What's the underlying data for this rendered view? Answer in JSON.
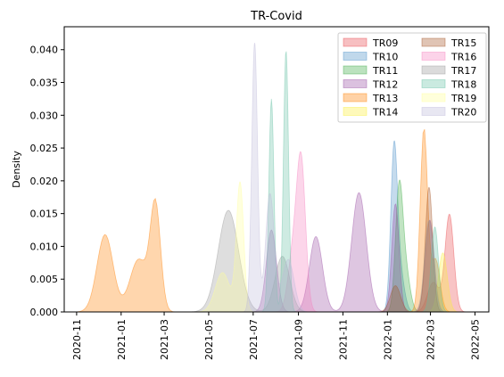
{
  "chart_data": {
    "type": "area",
    "title": "TR-Covid",
    "xlabel": "",
    "ylabel": "Density",
    "ylim": [
      0,
      0.0435
    ],
    "xlim": [
      "2020-10-15",
      "2022-05-20"
    ],
    "x_ticks": [
      "2020-11",
      "2021-01",
      "2021-03",
      "2021-05",
      "2021-07",
      "2021-09",
      "2021-11",
      "2022-01",
      "2022-03",
      "2022-05"
    ],
    "y_ticks": [
      "0.000",
      "0.005",
      "0.010",
      "0.015",
      "0.020",
      "0.025",
      "0.030",
      "0.035",
      "0.040"
    ],
    "grid": false,
    "legend_position": "top-right",
    "series": [
      {
        "name": "TR09",
        "color": "#e8474c",
        "peaks": [
          {
            "x": "2022-03-27",
            "y": 0.0148,
            "sd": 6
          },
          {
            "x": "2022-03-05",
            "y": 0.0045,
            "sd": 8
          }
        ]
      },
      {
        "name": "TR10",
        "color": "#4a8fc7",
        "peaks": [
          {
            "x": "2022-01-10",
            "y": 0.0235,
            "sd": 4.5
          },
          {
            "x": "2022-01-18",
            "y": 0.006,
            "sd": 6
          }
        ]
      },
      {
        "name": "TR11",
        "color": "#3dab45",
        "peaks": [
          {
            "x": "2022-01-17",
            "y": 0.018,
            "sd": 5
          },
          {
            "x": "2022-01-26",
            "y": 0.006,
            "sd": 6
          }
        ]
      },
      {
        "name": "TR12",
        "color": "#984ea3",
        "peaks": [
          {
            "x": "2021-07-26",
            "y": 0.0125,
            "sd": 7
          },
          {
            "x": "2021-09-25",
            "y": 0.0115,
            "sd": 9
          },
          {
            "x": "2021-11-23",
            "y": 0.0182,
            "sd": 10
          },
          {
            "x": "2022-01-12",
            "y": 0.0165,
            "sd": 5
          },
          {
            "x": "2022-02-28",
            "y": 0.014,
            "sd": 6
          }
        ]
      },
      {
        "name": "TR13",
        "color": "#ff7f00",
        "peaks": [
          {
            "x": "2020-12-10",
            "y": 0.0118,
            "sd": 11
          },
          {
            "x": "2021-01-25",
            "y": 0.008,
            "sd": 12
          },
          {
            "x": "2021-02-17",
            "y": 0.016,
            "sd": 7
          },
          {
            "x": "2022-02-20",
            "y": 0.028,
            "sd": 5
          },
          {
            "x": "2022-03-08",
            "y": 0.008,
            "sd": 6
          }
        ]
      },
      {
        "name": "TR14",
        "color": "#fbef3a",
        "peaks": [
          {
            "x": "2022-03-18",
            "y": 0.009,
            "sd": 6
          }
        ]
      },
      {
        "name": "TR15",
        "color": "#a65628",
        "peaks": [
          {
            "x": "2022-02-27",
            "y": 0.019,
            "sd": 5
          },
          {
            "x": "2022-01-12",
            "y": 0.004,
            "sd": 7
          }
        ]
      },
      {
        "name": "TR16",
        "color": "#f781bf",
        "peaks": [
          {
            "x": "2021-08-25",
            "y": 0.009,
            "sd": 7
          },
          {
            "x": "2021-09-05",
            "y": 0.0215,
            "sd": 6
          }
        ]
      },
      {
        "name": "TR17",
        "color": "#999999",
        "peaks": [
          {
            "x": "2021-05-28",
            "y": 0.0155,
            "sd": 14
          },
          {
            "x": "2021-08-10",
            "y": 0.0085,
            "sd": 10
          },
          {
            "x": "2022-02-27",
            "y": 0.014,
            "sd": 6
          }
        ]
      },
      {
        "name": "TR18",
        "color": "#66c2a5",
        "peaks": [
          {
            "x": "2021-07-26",
            "y": 0.0325,
            "sd": 3.5
          },
          {
            "x": "2021-08-15",
            "y": 0.04,
            "sd": 3.5
          },
          {
            "x": "2022-03-07",
            "y": 0.013,
            "sd": 5
          }
        ]
      },
      {
        "name": "TR19",
        "color": "#ffff99",
        "peaks": [
          {
            "x": "2021-06-13",
            "y": 0.0195,
            "sd": 5
          },
          {
            "x": "2021-05-20",
            "y": 0.006,
            "sd": 10
          }
        ]
      },
      {
        "name": "TR20",
        "color": "#bebada",
        "peaks": [
          {
            "x": "2021-07-03",
            "y": 0.041,
            "sd": 4
          },
          {
            "x": "2021-07-24",
            "y": 0.018,
            "sd": 6
          },
          {
            "x": "2021-08-18",
            "y": 0.008,
            "sd": 8
          }
        ]
      }
    ]
  }
}
